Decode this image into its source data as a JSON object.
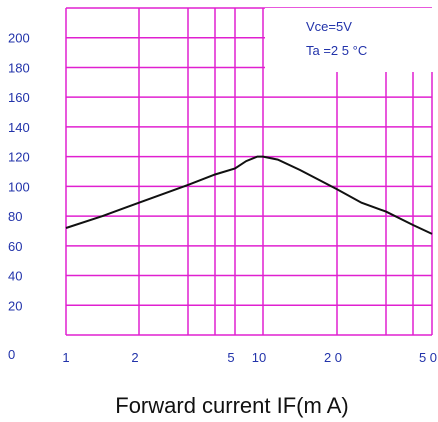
{
  "chart_data": {
    "type": "line",
    "title": "",
    "xlabel": "Forward current IF(m A)",
    "ylabel": "",
    "x_scale": "mixed",
    "xlim": [
      1,
      50
    ],
    "ylim": [
      0,
      220
    ],
    "y_ticks": [
      "0",
      "20",
      "40",
      "60",
      "80",
      "100",
      "120",
      "140",
      "160",
      "180",
      "200"
    ],
    "x_ticks": [
      {
        "value": 1,
        "label": "1"
      },
      {
        "value": 2,
        "label": "2"
      },
      {
        "value": 5,
        "label": "5"
      },
      {
        "value": 10,
        "label": "10"
      },
      {
        "value": 20,
        "label": "2 0"
      },
      {
        "value": 50,
        "label": "5 0"
      }
    ],
    "x_gridlines": [
      1,
      2,
      3,
      4,
      5,
      10,
      20,
      30,
      40,
      50
    ],
    "y_gridlines": [
      20,
      40,
      60,
      80,
      100,
      120,
      140,
      160,
      180,
      200,
      220
    ],
    "grid": true,
    "annotations": [
      "Vce=5V",
      "Ta =2 5 °C"
    ],
    "series": [
      {
        "x": [
          1,
          1.5,
          2,
          3,
          4,
          5,
          7,
          9,
          10,
          12,
          15,
          20,
          25,
          30,
          40,
          50
        ],
        "values": [
          72,
          80,
          89,
          101,
          108,
          112,
          117,
          120,
          120,
          118,
          111,
          98,
          89,
          83,
          74,
          68
        ]
      }
    ],
    "colors": {
      "grid": "#e020d0",
      "line": "#111111",
      "ticks": "#2233aa"
    }
  }
}
